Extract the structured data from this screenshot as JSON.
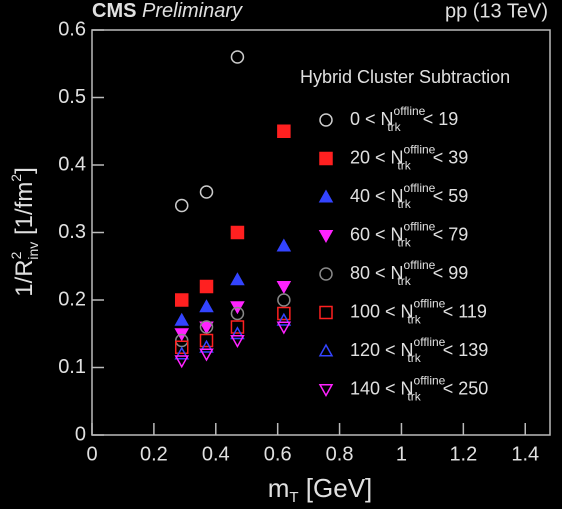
{
  "chart_data": {
    "type": "scatter",
    "experiment": "CMS",
    "status": "Preliminary",
    "energy_label": "pp (13 TeV)",
    "legend_title": "Hybrid Cluster Subtraction",
    "legend_variable": {
      "base": "N",
      "sub": "trk",
      "sup": "offline"
    },
    "x_label": {
      "main": "m",
      "sub": "T",
      "unit": "[GeV]"
    },
    "y_label": {
      "main": "1/R",
      "sup": "2",
      "sub": "inv",
      "unit": "[1/fm",
      "unit_sup": "2",
      "close": "]"
    },
    "x": [
      0.29,
      0.37,
      0.47,
      0.62
    ],
    "xlim": [
      0,
      1.48
    ],
    "ylim": [
      0,
      0.6
    ],
    "xticks": [
      0,
      0.2,
      0.4,
      0.6,
      0.8,
      1,
      1.2,
      1.4
    ],
    "yticks": [
      0,
      0.1,
      0.2,
      0.3,
      0.4,
      0.5,
      0.6
    ],
    "series": [
      {
        "name": {
          "lower": "0 <",
          "upper": "< 19"
        },
        "color": "#cccccc",
        "marker": "circle-open",
        "values": [
          0.34,
          0.36,
          0.56,
          null
        ]
      },
      {
        "name": {
          "lower": "20 <",
          "upper": "< 39"
        },
        "color": "#ff2020",
        "marker": "square",
        "values": [
          0.2,
          0.22,
          0.3,
          0.45
        ]
      },
      {
        "name": {
          "lower": "40 <",
          "upper": "< 59"
        },
        "color": "#3344ff",
        "marker": "triangle-up",
        "values": [
          0.17,
          0.19,
          0.23,
          0.28
        ]
      },
      {
        "name": {
          "lower": "60 <",
          "upper": "< 79"
        },
        "color": "#ff22ff",
        "marker": "triangle-down",
        "values": [
          0.15,
          0.16,
          0.19,
          0.22
        ]
      },
      {
        "name": {
          "lower": "80 <",
          "upper": "< 99"
        },
        "color": "#888888",
        "marker": "circle-open",
        "values": [
          0.14,
          0.16,
          0.18,
          0.2
        ]
      },
      {
        "name": {
          "lower": "100 <",
          "upper": "< 119"
        },
        "color": "#ff2020",
        "marker": "square-open",
        "values": [
          0.13,
          0.14,
          0.16,
          0.18
        ]
      },
      {
        "name": {
          "lower": "120 <",
          "upper": "< 139"
        },
        "color": "#3344ff",
        "marker": "triangle-up-open",
        "values": [
          0.12,
          0.13,
          0.15,
          0.17
        ]
      },
      {
        "name": {
          "lower": "140 <",
          "upper": "< 250"
        },
        "color": "#ff22ff",
        "marker": "triangle-down-open",
        "values": [
          0.11,
          0.12,
          0.14,
          0.16
        ]
      }
    ]
  }
}
